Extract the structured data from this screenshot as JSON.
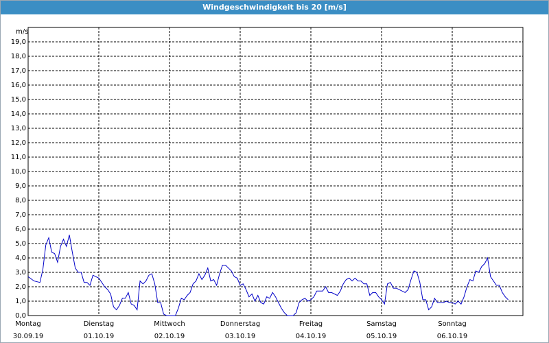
{
  "chart_data": {
    "type": "line",
    "title": "Windgeschwindigkeit bis 20 [m/s]",
    "y_unit": "m/s",
    "ylim": [
      0,
      20
    ],
    "yticks": [
      {
        "value": 0,
        "label": "0,0"
      },
      {
        "value": 1,
        "label": "1,0"
      },
      {
        "value": 2,
        "label": "2,0"
      },
      {
        "value": 3,
        "label": "3,0"
      },
      {
        "value": 4,
        "label": "4,0"
      },
      {
        "value": 5,
        "label": "5,0"
      },
      {
        "value": 6,
        "label": "6,0"
      },
      {
        "value": 7,
        "label": "7,0"
      },
      {
        "value": 8,
        "label": "8,0"
      },
      {
        "value": 9,
        "label": "9,0"
      },
      {
        "value": 10,
        "label": "10,0"
      },
      {
        "value": 11,
        "label": "11,0"
      },
      {
        "value": 12,
        "label": "12,0"
      },
      {
        "value": 13,
        "label": "13,0"
      },
      {
        "value": 14,
        "label": "14,0"
      },
      {
        "value": 15,
        "label": "15,0"
      },
      {
        "value": 16,
        "label": "16,0"
      },
      {
        "value": 17,
        "label": "17,0"
      },
      {
        "value": 18,
        "label": "18,0"
      },
      {
        "value": 19,
        "label": "19,0"
      }
    ],
    "xlim": [
      0,
      168
    ],
    "xticks": [
      {
        "value": 0,
        "label": "Montag"
      },
      {
        "value": 24,
        "label": "Dienstag"
      },
      {
        "value": 48,
        "label": "Mittwoch"
      },
      {
        "value": 72,
        "label": "Donnerstag"
      },
      {
        "value": 96,
        "label": "Freitag"
      },
      {
        "value": 120,
        "label": "Samstag"
      },
      {
        "value": 144,
        "label": "Sonntag"
      }
    ],
    "xtick_dates": [
      "30.09.19",
      "01.10.19",
      "02.10.19",
      "03.10.19",
      "04.10.19",
      "05.10.19",
      "06.10.19"
    ],
    "grid": true,
    "series": [
      {
        "color": "#0000c8",
        "x": [
          0,
          2,
          4,
          5,
          6,
          7,
          8,
          9,
          10,
          11,
          12,
          13,
          14,
          15,
          16,
          17,
          18,
          19,
          20,
          21,
          22,
          23,
          24,
          26,
          27,
          28,
          29,
          30,
          31,
          32,
          33,
          34,
          35,
          36,
          37,
          38,
          39,
          40,
          41,
          42,
          43,
          44,
          45,
          46,
          47,
          48,
          50,
          51,
          52,
          53,
          54,
          55,
          56,
          57,
          58,
          59,
          60,
          61,
          62,
          63,
          64,
          65,
          66,
          67,
          68,
          69,
          70,
          71,
          72,
          73,
          74,
          75,
          76,
          77,
          78,
          79,
          80,
          81,
          82,
          83,
          84,
          85,
          86,
          87,
          88,
          89,
          90,
          91,
          92,
          93,
          94,
          95,
          96,
          97,
          98,
          99,
          100,
          101,
          102,
          103,
          104,
          105,
          106,
          107,
          108,
          109,
          110,
          111,
          112,
          113,
          114,
          115,
          116,
          117,
          118,
          119,
          120,
          121,
          122,
          123,
          124,
          125,
          126,
          127,
          128,
          129,
          130,
          131,
          132,
          133,
          134,
          135,
          136,
          137,
          138,
          139,
          140,
          141,
          142,
          143,
          144,
          145,
          146,
          147,
          148,
          149,
          150,
          151,
          152,
          153,
          154,
          155,
          156,
          157,
          158,
          159,
          160,
          161,
          162,
          163
        ],
        "values": [
          2.7,
          2.4,
          2.3,
          3.2,
          4.9,
          5.4,
          4.4,
          4.3,
          3.7,
          4.8,
          5.3,
          4.8,
          5.6,
          4.4,
          3.3,
          3.0,
          3.0,
          2.3,
          2.3,
          2.1,
          2.8,
          2.7,
          2.6,
          2.0,
          1.8,
          1.5,
          0.6,
          0.4,
          0.7,
          1.2,
          1.2,
          1.6,
          0.8,
          0.7,
          0.4,
          2.4,
          2.2,
          2.4,
          2.8,
          2.9,
          2.2,
          0.9,
          0.9,
          0.1,
          0.0,
          0.0,
          0.0,
          0.5,
          1.2,
          1.1,
          1.4,
          1.6,
          2.2,
          2.4,
          2.9,
          2.5,
          2.8,
          3.3,
          2.4,
          2.5,
          2.1,
          2.9,
          3.5,
          3.5,
          3.3,
          3.1,
          2.7,
          2.6,
          2.1,
          2.2,
          1.8,
          1.3,
          1.5,
          1.0,
          1.4,
          0.9,
          0.8,
          1.3,
          1.2,
          1.6,
          1.3,
          0.9,
          0.5,
          0.2,
          0.0,
          0.0,
          0.0,
          0.2,
          0.9,
          1.1,
          1.2,
          1.0,
          1.1,
          1.3,
          1.7,
          1.7,
          1.7,
          2.0,
          1.6,
          1.6,
          1.5,
          1.4,
          1.7,
          2.2,
          2.5,
          2.6,
          2.4,
          2.6,
          2.4,
          2.4,
          2.2,
          2.2,
          1.4,
          1.6,
          1.6,
          1.3,
          1.1,
          0.8,
          2.2,
          2.3,
          1.9,
          1.9,
          1.8,
          1.7,
          1.6,
          1.8,
          2.5,
          3.1,
          3.0,
          2.3,
          1.1,
          1.1,
          0.4,
          0.6,
          1.2,
          0.9,
          0.9,
          0.9,
          1.0,
          0.9,
          0.9,
          0.8,
          1.0,
          0.8,
          1.3,
          2.0,
          2.5,
          2.4,
          3.1,
          3.0,
          3.4,
          3.6,
          4.0,
          2.7,
          2.4,
          2.1,
          2.1,
          1.6,
          1.3,
          1.1
        ]
      }
    ]
  }
}
